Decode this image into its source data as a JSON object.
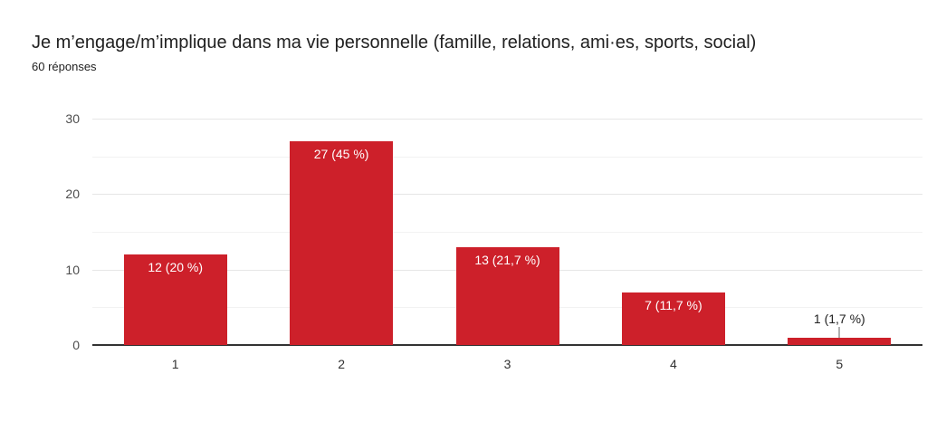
{
  "header": {
    "title": "Je m’engage/m’implique dans ma vie personnelle (famille, relations, ami·es, sports, social)",
    "subtitle": "60 réponses"
  },
  "colors": {
    "bar": "#cd202a",
    "title_text": "#212121",
    "axis_y_text": "#4d4d4d",
    "axis_x_text": "#303030",
    "gridline_major": "#e6e6e6",
    "gridline_minor": "#f2f2f2",
    "baseline": "#333333",
    "inside_label": "#ffffff",
    "outside_label": "#212121",
    "leader_line": "#b0b0b0"
  },
  "chart_data": {
    "type": "bar",
    "title": "Je m’engage/m’implique dans ma vie personnelle (famille, relations, ami·es, sports, social)",
    "subtitle": "60 réponses",
    "categories": [
      "1",
      "2",
      "3",
      "4",
      "5"
    ],
    "values": [
      12,
      27,
      13,
      7,
      1
    ],
    "data_labels": [
      "12 (20 %)",
      "27 (45 %)",
      "13 (21,7 %)",
      "7 (11,7 %)",
      "1 (1,7 %)"
    ],
    "label_placement": [
      "inside",
      "inside",
      "inside",
      "inside",
      "outside"
    ],
    "xlabel": "",
    "ylabel": "",
    "ylim": [
      0,
      30
    ],
    "yticks": [
      0,
      10,
      20,
      30
    ],
    "minor_gridlines": [
      5,
      15,
      25
    ],
    "grid": true,
    "legend": "none",
    "total_responses": 60
  }
}
